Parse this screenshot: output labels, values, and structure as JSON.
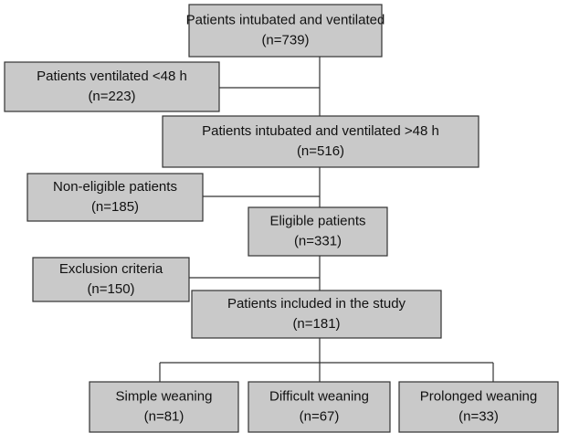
{
  "nodes": [
    {
      "label": "Patients intubated and ventilated",
      "count": "(n=739)"
    },
    {
      "label": "Patients ventilated <48 h",
      "count": "(n=223)"
    },
    {
      "label": "Patients intubated and ventilated >48 h",
      "count": "(n=516)"
    },
    {
      "label": "Non-eligible patients",
      "count": "(n=185)"
    },
    {
      "label": "Eligible patients",
      "count": "(n=331)"
    },
    {
      "label": "Exclusion criteria",
      "count": "(n=150)"
    },
    {
      "label": "Patients included in the study",
      "count": "(n=181)"
    },
    {
      "label": "Simple weaning",
      "count": "(n=81)"
    },
    {
      "label": "Difficult weaning",
      "count": "(n=67)"
    },
    {
      "label": "Prolonged weaning",
      "count": "(n=33)"
    }
  ]
}
